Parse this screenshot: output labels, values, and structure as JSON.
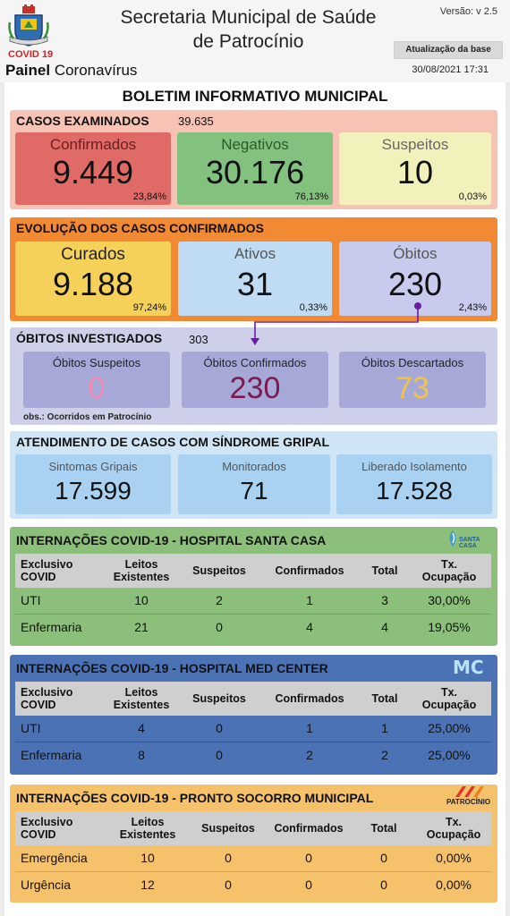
{
  "header": {
    "covid_tag": "COVID 19",
    "painel_bold": "Painel",
    "painel_rest": " Coronavírus",
    "title_line1": "Secretaria Municipal de Saúde",
    "title_line2": "de Patrocínio",
    "version": "Versão: v 2.5",
    "update_button": "Atualização da base",
    "timestamp": "30/08/2021 17:31"
  },
  "board_title": "BOLETIM INFORMATIVO MUNICIPAL",
  "casos": {
    "title": "CASOS EXAMINADOS",
    "count": "39.635",
    "confirmados": {
      "label": "Confirmados",
      "value": "9.449",
      "pct": "23,84%"
    },
    "negativos": {
      "label": "Negativos",
      "value": "30.176",
      "pct": "76,13%"
    },
    "suspeitos": {
      "label": "Suspeitos",
      "value": "10",
      "pct": "0,03%"
    }
  },
  "evolucao": {
    "title": "EVOLUÇÃO DOS CASOS CONFIRMADOS",
    "curados": {
      "label": "Curados",
      "value": "9.188",
      "pct": "97,24%"
    },
    "ativos": {
      "label": "Ativos",
      "value": "31",
      "pct": "0,33%"
    },
    "obitos": {
      "label": "Óbitos",
      "value": "230",
      "pct": "2,43%"
    }
  },
  "investigados": {
    "title": "ÓBITOS INVESTIGADOS",
    "count": "303",
    "suspeitos": {
      "label": "Óbitos Suspeitos",
      "value": "0"
    },
    "confirmados": {
      "label": "Óbitos Confirmados",
      "value": "230"
    },
    "descartados": {
      "label": "Óbitos Descartados",
      "value": "73"
    },
    "obs": "obs.: Ocorridos em Patrocínio"
  },
  "sindrome": {
    "title": "ATENDIMENTO DE CASOS COM SÍNDROME GRIPAL",
    "sintomas": {
      "label": "Sintomas Gripais",
      "value": "17.599"
    },
    "monitorados": {
      "label": "Monitorados",
      "value": "71"
    },
    "liberado": {
      "label": "Liberado Isolamento",
      "value": "17.528"
    }
  },
  "hospitals": {
    "santa_casa": {
      "title": "INTERNAÇÕES COVID-19 - HOSPITAL SANTA CASA",
      "logo_text": "SANTA CASA",
      "headers": {
        "c0a": "Exclusivo",
        "c0b": "COVID",
        "c1a": "Leitos",
        "c1b": "Existentes",
        "c2": "Suspeitos",
        "c3": "Confirmados",
        "c4": "Total",
        "c5a": "Tx.",
        "c5b": "Ocupação"
      },
      "rows": [
        {
          "name": "UTI",
          "leitos": "10",
          "suspeitos": "2",
          "confirmados": "1",
          "total": "3",
          "taxa": "30,00%"
        },
        {
          "name": "Enfermaria",
          "leitos": "21",
          "suspeitos": "0",
          "confirmados": "4",
          "total": "4",
          "taxa": "19,05%"
        }
      ]
    },
    "med_center": {
      "title": "INTERNAÇÕES COVID-19 - HOSPITAL MED CENTER",
      "logo_text": "MC",
      "headers": {
        "c0a": "Exclusivo",
        "c0b": "COVID",
        "c1a": "Leitos",
        "c1b": "Existentes",
        "c2": "Suspeitos",
        "c3": "Confirmados",
        "c4": "Total",
        "c5a": "Tx.",
        "c5b": "Ocupação"
      },
      "rows": [
        {
          "name": "UTI",
          "leitos": "4",
          "suspeitos": "0",
          "confirmados": "1",
          "total": "1",
          "taxa": "25,00%"
        },
        {
          "name": "Enfermaria",
          "leitos": "8",
          "suspeitos": "0",
          "confirmados": "2",
          "total": "2",
          "taxa": "25,00%"
        }
      ]
    },
    "pronto_socorro": {
      "title": "INTERNAÇÕES COVID-19 - PRONTO SOCORRO MUNICIPAL",
      "logo_text": "PATROCÍNIO",
      "headers": {
        "c0a": "Exclusivo",
        "c0b": "COVID",
        "c1a": "Leitos",
        "c1b": "Existentes",
        "c2": "Suspeitos",
        "c3": "Confirmados",
        "c4": "Total",
        "c5a": "Tx.",
        "c5b": "Ocupação"
      },
      "rows": [
        {
          "name": "Emergência",
          "leitos": "10",
          "suspeitos": "0",
          "confirmados": "0",
          "total": "0",
          "taxa": "0,00%"
        },
        {
          "name": "Urgência",
          "leitos": "12",
          "suspeitos": "0",
          "confirmados": "0",
          "total": "0",
          "taxa": "0,00%"
        }
      ]
    }
  },
  "colors": {
    "casos_panel": "#f6c3b5",
    "evolucao_panel": "#f28a33",
    "investigados_panel": "#cdd0e8",
    "sindrome_panel": "#cfe5f6",
    "santa_casa_panel": "#8cc07a",
    "med_center_panel": "#4a72b5",
    "pronto_socorro_panel": "#f5c26b",
    "confirmados_card": "#e06a66",
    "negativos_card": "#82c27e",
    "suspeitos_card": "#f2f1bb",
    "curados_card": "#f6d15a",
    "ativos_card": "#bfdcf4",
    "obitos_card": "#c9cbee"
  }
}
